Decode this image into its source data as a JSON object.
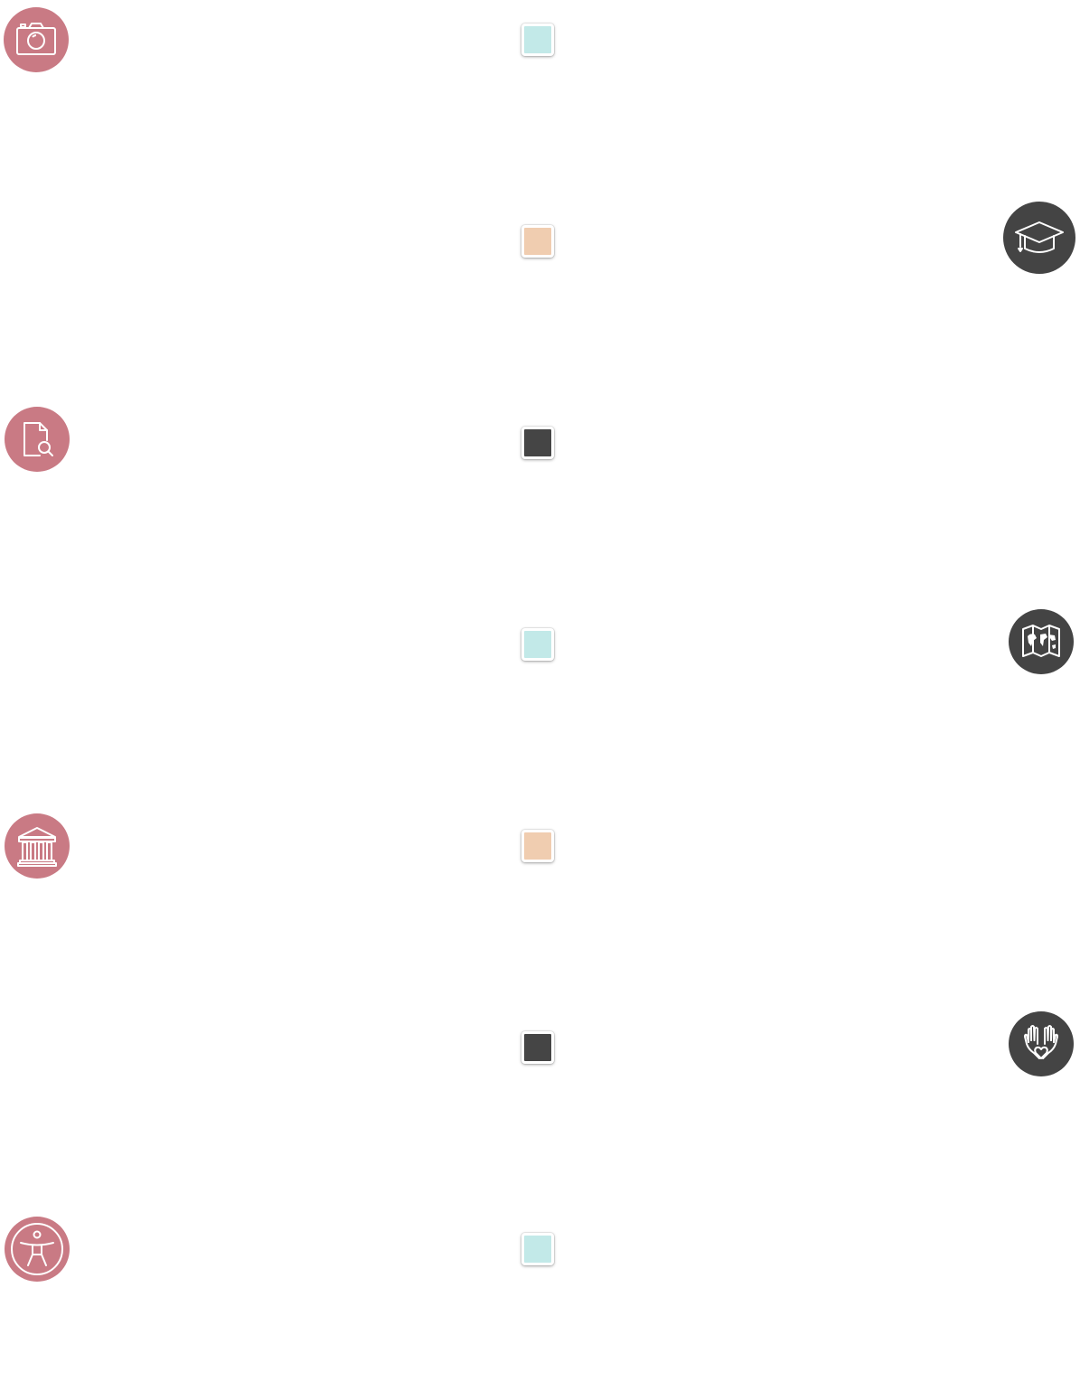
{
  "colors": {
    "pink_icon": "#c97a84",
    "dark_icon": "#444444",
    "marker_teal": "#c2e9e8",
    "marker_peach": "#f0cdb0",
    "marker_dark": "#454545"
  },
  "left_icons": [
    {
      "icon": "camera-icon",
      "color": "#c97a84"
    },
    {
      "icon": "document-search-icon",
      "color": "#c97a84"
    },
    {
      "icon": "museum-icon",
      "color": "#c97a84"
    },
    {
      "icon": "accessibility-icon",
      "color": "#c97a84"
    }
  ],
  "right_icons": [
    {
      "icon": "graduation-cap-icon",
      "color": "#444444"
    },
    {
      "icon": "world-map-icon",
      "color": "#444444"
    },
    {
      "icon": "hands-heart-icon",
      "color": "#444444"
    }
  ],
  "timeline_markers": [
    {
      "color": "#c2e9e8"
    },
    {
      "color": "#f0cdb0"
    },
    {
      "color": "#454545"
    },
    {
      "color": "#c2e9e8"
    },
    {
      "color": "#f0cdb0"
    },
    {
      "color": "#454545"
    },
    {
      "color": "#c2e9e8"
    }
  ]
}
